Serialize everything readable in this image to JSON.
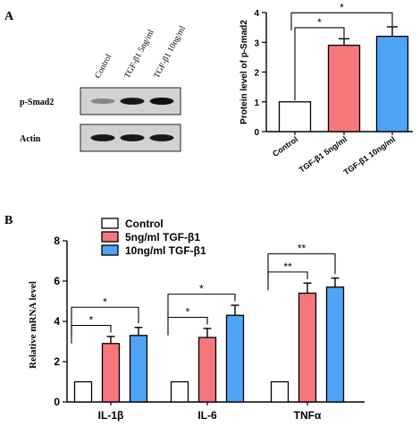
{
  "panels": {
    "a_letter": "A",
    "b_letter": "B"
  },
  "blot": {
    "lane_labels": [
      "Control",
      "TGF-β1  5ng/ml",
      "TGF-β1  10ng/ml"
    ],
    "rows": [
      {
        "label": "p-Smad2",
        "intensity": [
          0.35,
          0.95,
          1.0
        ]
      },
      {
        "label": "Actin",
        "intensity": [
          0.95,
          0.95,
          0.95
        ]
      }
    ]
  },
  "colors": {
    "control": "#ffffff",
    "low_dose": "#f5777a",
    "high_dose": "#4fa3f4",
    "axis": "#000000"
  },
  "chart_data": [
    {
      "type": "bar",
      "categories": [
        "Control",
        "TGF-β1  5ng/ml",
        "TGF-β1 10ng/ml"
      ],
      "values": [
        1.0,
        2.9,
        3.2
      ],
      "errors": [
        0.0,
        0.22,
        0.32
      ],
      "bar_colors": [
        "#ffffff",
        "#f5777a",
        "#4fa3f4"
      ],
      "title": "",
      "xlabel": "",
      "ylabel": "Protein level of p-Smad2",
      "ylim": [
        0,
        4
      ],
      "yticks": [
        0,
        1,
        2,
        3,
        4
      ],
      "significance": [
        {
          "from": 0,
          "to": 1,
          "label": "*"
        },
        {
          "from": 0,
          "to": 2,
          "label": "*"
        }
      ]
    },
    {
      "type": "bar",
      "categories": [
        "IL-1β",
        "IL-6",
        "TNFα"
      ],
      "series": [
        {
          "name": "Control",
          "values": [
            1.0,
            1.0,
            1.0
          ],
          "errors": [
            0,
            0,
            0
          ],
          "color": "#ffffff"
        },
        {
          "name": "5ng/ml TGF-β1",
          "values": [
            2.9,
            3.2,
            5.4
          ],
          "errors": [
            0.35,
            0.45,
            0.5
          ],
          "color": "#f5777a"
        },
        {
          "name": "10ng/ml TGF-β1",
          "values": [
            3.3,
            4.3,
            5.7
          ],
          "errors": [
            0.4,
            0.5,
            0.45
          ],
          "color": "#4fa3f4"
        }
      ],
      "title": "",
      "xlabel": "",
      "ylabel": "Relative  mRNA level",
      "ylim": [
        0,
        8
      ],
      "yticks": [
        0,
        2,
        4,
        6,
        8
      ],
      "legend_position": "top-left",
      "significance": [
        {
          "group": 0,
          "from": 0,
          "to": 1,
          "label": "*"
        },
        {
          "group": 0,
          "from": 0,
          "to": 2,
          "label": "*"
        },
        {
          "group": 1,
          "from": 0,
          "to": 1,
          "label": "*"
        },
        {
          "group": 1,
          "from": 0,
          "to": 2,
          "label": "*"
        },
        {
          "group": 2,
          "from": 0,
          "to": 1,
          "label": "**"
        },
        {
          "group": 2,
          "from": 0,
          "to": 2,
          "label": "**"
        }
      ]
    }
  ]
}
